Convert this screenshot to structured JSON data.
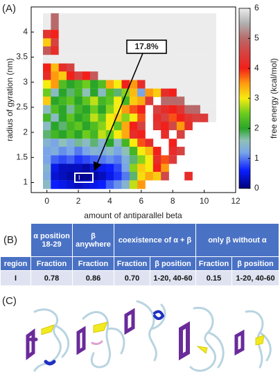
{
  "panels": [
    "(A)",
    "(B)",
    "(C)"
  ],
  "chart_data": {
    "type": "heatmap",
    "xlabel": "amount of antiparallel beta",
    "ylabel": "radius of gyration (nm)",
    "colorbar_label": "free energy (kcal/mol)",
    "annotations": [
      {
        "text": "17.8%"
      }
    ],
    "region_label": "I",
    "xlim": [
      -1,
      12
    ],
    "ylim": [
      0.8,
      4.5
    ],
    "xticks": [
      0,
      2,
      4,
      6,
      8,
      10,
      12
    ],
    "yticks": [
      1,
      1.5,
      2,
      2.5,
      3,
      3.5,
      4
    ],
    "clim": [
      0,
      6
    ],
    "cticks": [
      0,
      1,
      2,
      3,
      4,
      5,
      6
    ],
    "colormap": [
      {
        "value": 0,
        "color": "#00007a"
      },
      {
        "value": 0.6,
        "color": "#0a1eff"
      },
      {
        "value": 1.2,
        "color": "#7aa6e8"
      },
      {
        "value": 1.6,
        "color": "#8fc0b8"
      },
      {
        "value": 2,
        "color": "#2aa52a"
      },
      {
        "value": 2.5,
        "color": "#6ccc1e"
      },
      {
        "value": 3,
        "color": "#f6ec10"
      },
      {
        "value": 3.5,
        "color": "#ff9a10"
      },
      {
        "value": 4,
        "color": "#f2201a"
      },
      {
        "value": 4.6,
        "color": "#d24848"
      },
      {
        "value": 5,
        "color": "#b86a6a"
      },
      {
        "value": 5.5,
        "color": "#b0b0b0"
      },
      {
        "value": 6,
        "color": "#ececec"
      }
    ],
    "x": [
      0,
      0.5,
      1,
      1.5,
      2,
      2.5,
      3,
      3.5,
      4,
      4.5,
      5,
      5.5,
      6,
      6.5,
      7,
      7.5,
      8,
      8.5,
      9,
      9.5,
      10,
      10.5
    ],
    "y": [
      4.29,
      4.13,
      3.96,
      3.79,
      3.63,
      3.46,
      3.29,
      3.13,
      2.96,
      2.79,
      2.63,
      2.46,
      2.29,
      2.13,
      1.96,
      1.79,
      1.63,
      1.46,
      1.29,
      1.13,
      0.96
    ],
    "z": [
      [
        6,
        5,
        6,
        6,
        6,
        6,
        6,
        6,
        6,
        6,
        6,
        6,
        6,
        6,
        6,
        6,
        6,
        6,
        6,
        6,
        6,
        6
      ],
      [
        6,
        5,
        6,
        6,
        6,
        6,
        6,
        6,
        6,
        6,
        6,
        6,
        6,
        6,
        6,
        6,
        6,
        6,
        6,
        6,
        6,
        6
      ],
      [
        4.3,
        4.0,
        6,
        6,
        6,
        6,
        6,
        6,
        6,
        6,
        6,
        6,
        6,
        6,
        6,
        6,
        6,
        6,
        6,
        6,
        6,
        6
      ],
      [
        3.2,
        4.5,
        6,
        6,
        6,
        6,
        6,
        6,
        6,
        6,
        6,
        6,
        6,
        6,
        6,
        6,
        6,
        6,
        6,
        6,
        6,
        6
      ],
      [
        4.8,
        4.2,
        6,
        6,
        6,
        6,
        6,
        6,
        6,
        6,
        6,
        6,
        6,
        6,
        6,
        6,
        6,
        6,
        6,
        6,
        6,
        6
      ],
      [
        6,
        6,
        6,
        6,
        6,
        6,
        6,
        6,
        6,
        6,
        6,
        6,
        6,
        6,
        6,
        6,
        6,
        6,
        6,
        6,
        6,
        6
      ],
      [
        4.0,
        3.3,
        4.2,
        4.5,
        6,
        6,
        6,
        6,
        6,
        6,
        6,
        6,
        6,
        6,
        6,
        6,
        6,
        6,
        6,
        6,
        6,
        6
      ],
      [
        4.2,
        3.5,
        3.2,
        4.0,
        4.5,
        4.0,
        4.8,
        6,
        6,
        6,
        6,
        6,
        6,
        6,
        6,
        6,
        6,
        6,
        6,
        6,
        6,
        6
      ],
      [
        3.0,
        3.5,
        2.3,
        2.0,
        2.2,
        2.5,
        2.0,
        2.3,
        3.4,
        3.0,
        4.0,
        3.5,
        4.2,
        6,
        6,
        6,
        6,
        6,
        6,
        6,
        6,
        6
      ],
      [
        2.5,
        1.5,
        2.0,
        1.8,
        2.2,
        1.6,
        2.0,
        1.5,
        2.3,
        1.8,
        2.6,
        3.3,
        1.2,
        3.5,
        3.2,
        4.2,
        4.0,
        6,
        6,
        6,
        6,
        6
      ],
      [
        3.2,
        2.0,
        2.2,
        2.4,
        2.0,
        2.4,
        2.8,
        2.2,
        2.4,
        3.0,
        2.2,
        3.2,
        3.4,
        4.4,
        null,
        5.0,
        5.0,
        5.0,
        6,
        6,
        6,
        6
      ],
      [
        1.5,
        2.3,
        2.0,
        1.7,
        2.2,
        2.0,
        2.5,
        2.0,
        2.6,
        3.0,
        3.5,
        3.8,
        4.0,
        null,
        4.5,
        4.2,
        4.0,
        4.3,
        5.0,
        5.0,
        6,
        6
      ],
      [
        2.2,
        1.5,
        2.0,
        2.4,
        2.0,
        2.2,
        2.8,
        2.4,
        3.0,
        3.2,
        2.6,
        3.0,
        3.8,
        null,
        4.2,
        4.5,
        3.8,
        4.0,
        4.3,
        4.5,
        4.4,
        6
      ],
      [
        1.5,
        2.0,
        1.8,
        2.2,
        2.4,
        2.0,
        2.3,
        2.6,
        3.0,
        2.4,
        3.4,
        4.0,
        4.5,
        null,
        4.3,
        4.0,
        4.6,
        3.5,
        4.2,
        null,
        null,
        null
      ],
      [
        1.8,
        2.2,
        2.0,
        2.3,
        2.0,
        2.5,
        2.2,
        2.8,
        2.5,
        3.0,
        3.4,
        4.2,
        4.0,
        null,
        null,
        4.2,
        null,
        4.5,
        null,
        null,
        null,
        null
      ],
      [
        1.4,
        1.2,
        1.6,
        1.3,
        1.7,
        1.5,
        1.8,
        1.4,
        2.0,
        1.5,
        2.2,
        3.0,
        3.8,
        4.2,
        null,
        null,
        4.0,
        null,
        null,
        null,
        null,
        null
      ],
      [
        1.2,
        1.3,
        1.1,
        1.2,
        1.0,
        1.2,
        1.4,
        1.3,
        1.5,
        1.2,
        1.6,
        2.2,
        3.0,
        3.3,
        4.0,
        null,
        4.2,
        4.5,
        null,
        null,
        null,
        null
      ],
      [
        1.2,
        0.9,
        0.8,
        0.9,
        0.7,
        0.8,
        0.9,
        1.0,
        1.1,
        1.0,
        1.3,
        1.8,
        2.6,
        3.0,
        4.2,
        3.8,
        4.4,
        null,
        null,
        null,
        null,
        null
      ],
      [
        1.4,
        0.5,
        0.3,
        0.3,
        0.3,
        0.2,
        0.4,
        0.5,
        0.6,
        0.8,
        1.2,
        2.6,
        3.2,
        3.0,
        4.0,
        3.5,
        null,
        null,
        null,
        null,
        null,
        null
      ],
      [
        1.3,
        0.4,
        0.3,
        0.2,
        0.1,
        0.1,
        0.2,
        0.3,
        0.5,
        0.7,
        1.0,
        1.8,
        3.1,
        3.4,
        3.2,
        4.6,
        null,
        null,
        4.2,
        null,
        null,
        null
      ],
      [
        1.5,
        0.6,
        0.5,
        0.4,
        0.3,
        0.4,
        0.5,
        0.6,
        0.9,
        1.1,
        1.4,
        2.8,
        3.5,
        null,
        null,
        null,
        null,
        null,
        null,
        null,
        null,
        null
      ]
    ]
  },
  "table": {
    "header": [
      "α position 18-29",
      "β anywhere",
      "coexistence of α + β",
      "only β without α"
    ],
    "subheader": [
      "region",
      "Fraction",
      "Fraction",
      "Fraction",
      "β position",
      "Fraction",
      "β position"
    ],
    "rows": [
      [
        "I",
        "0.78",
        "0.86",
        "0.70",
        "1-20, 40-60",
        "0.15",
        "1-20, 40-60"
      ]
    ]
  }
}
